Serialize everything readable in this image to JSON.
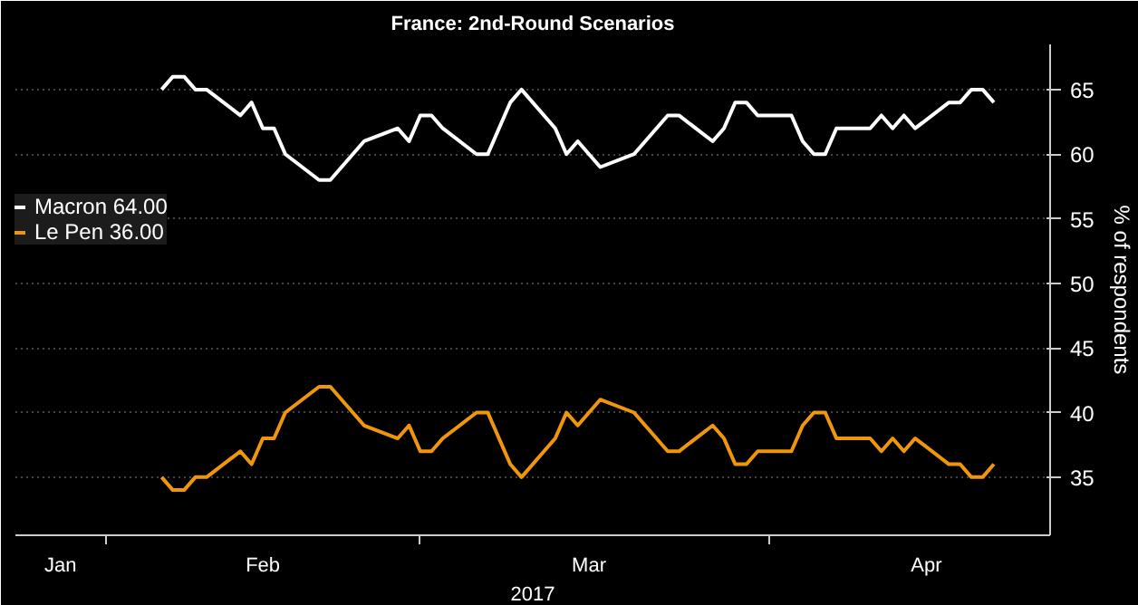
{
  "chart_data": {
    "type": "line",
    "title": "France: 2nd-Round Scenarios",
    "xlabel": "2017",
    "ylabel": "% of respondents",
    "x": [
      "2017-02-06",
      "2017-02-07",
      "2017-02-08",
      "2017-02-09",
      "2017-02-10",
      "2017-02-13",
      "2017-02-14",
      "2017-02-15",
      "2017-02-16",
      "2017-02-17",
      "2017-02-20",
      "2017-02-21",
      "2017-02-24",
      "2017-02-27",
      "2017-02-28",
      "2017-03-01",
      "2017-03-02",
      "2017-03-03",
      "2017-03-06",
      "2017-03-07",
      "2017-03-09",
      "2017-03-10",
      "2017-03-13",
      "2017-03-14",
      "2017-03-15",
      "2017-03-17",
      "2017-03-20",
      "2017-03-23",
      "2017-03-24",
      "2017-03-27",
      "2017-03-28",
      "2017-03-29",
      "2017-03-30",
      "2017-03-31",
      "2017-04-03",
      "2017-04-04",
      "2017-04-05",
      "2017-04-06",
      "2017-04-07",
      "2017-04-10",
      "2017-04-11",
      "2017-04-12",
      "2017-04-13",
      "2017-04-14",
      "2017-04-17",
      "2017-04-18",
      "2017-04-19",
      "2017-04-20",
      "2017-04-21"
    ],
    "series": [
      {
        "name": "Macron 64.00",
        "color": "#ffffff",
        "values": [
          65,
          66,
          66,
          65,
          65,
          63,
          64,
          62,
          62,
          60,
          58,
          58,
          61,
          62,
          61,
          63,
          63,
          62,
          60,
          60,
          64,
          65,
          62,
          60,
          61,
          59,
          60,
          63,
          63,
          61,
          62,
          64,
          64,
          63,
          63,
          61,
          60,
          60,
          62,
          62,
          63,
          62,
          63,
          62,
          64,
          64,
          65,
          65,
          64
        ]
      },
      {
        "name": "Le Pen 36.00",
        "color": "#f0960a",
        "values": [
          35,
          34,
          34,
          35,
          35,
          37,
          36,
          38,
          38,
          40,
          42,
          42,
          39,
          38,
          39,
          37,
          37,
          38,
          40,
          40,
          36,
          35,
          38,
          40,
          39,
          41,
          40,
          37,
          37,
          39,
          38,
          36,
          36,
          37,
          37,
          39,
          40,
          40,
          38,
          38,
          37,
          38,
          37,
          38,
          36,
          36,
          35,
          35,
          36
        ]
      }
    ],
    "xlim": [
      "2017-01-24",
      "2017-04-26"
    ],
    "xticks": [
      {
        "value": "2017-02-01",
        "label": null
      },
      {
        "value": "2017-03-01",
        "label": null
      },
      {
        "value": "2017-04-01",
        "label": null
      },
      {
        "value": "2017-01-28",
        "label": "Jan"
      },
      {
        "value": "2017-02-15",
        "label": "Feb"
      },
      {
        "value": "2017-03-16",
        "label": "Mar"
      },
      {
        "value": "2017-04-15",
        "label": "Apr"
      }
    ],
    "ylim": [
      30.5,
      68.5
    ],
    "yticks": [
      35,
      40,
      45,
      50,
      55,
      60,
      65
    ],
    "grid": true,
    "legend": "left",
    "line_style": "solid"
  }
}
